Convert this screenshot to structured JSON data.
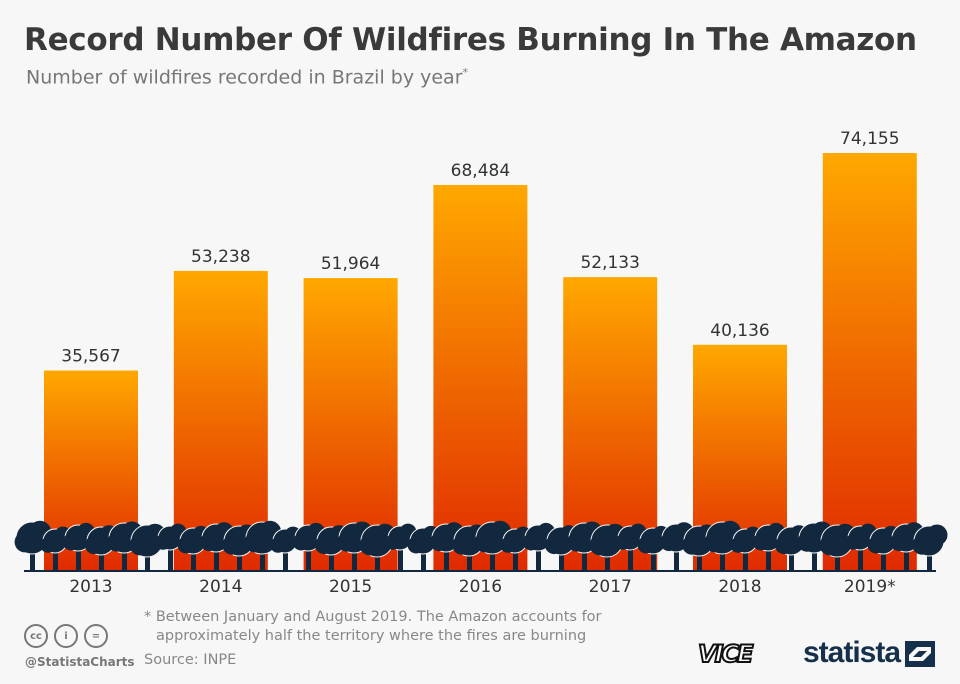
{
  "header": {
    "title": "Record Number Of Wildfires Burning In The Amazon",
    "subtitle": "Number of wildfires recorded in Brazil by year",
    "subtitle_mark": "*"
  },
  "chart_data": {
    "type": "bar",
    "title": "Record Number Of Wildfires Burning In The Amazon",
    "subtitle": "Number of wildfires recorded in Brazil by year*",
    "categories": [
      "2013",
      "2014",
      "2015",
      "2016",
      "2017",
      "2018",
      "2019*"
    ],
    "values": [
      35567,
      53238,
      51964,
      68484,
      52133,
      40136,
      74155
    ],
    "value_labels": [
      "35,567",
      "53,238",
      "51,964",
      "68,484",
      "52,133",
      "40,136",
      "74,155"
    ],
    "xlabel": "",
    "ylabel": "",
    "ylim": [
      0,
      74155
    ],
    "grid": false,
    "colors": {
      "bar_top": "#ffa800",
      "bar_bottom": "#e02a00",
      "trees": "#12283e"
    }
  },
  "footer": {
    "note_line1": "* Between January and August 2019. The Amazon accounts for",
    "note_line2": "approximately half the territory where the fires are burning",
    "source": "Source: INPE",
    "handle": "@StatistaCharts",
    "cc_icons": [
      "cc",
      "by",
      "nd"
    ],
    "cc_labels": [
      "cc",
      "i",
      "="
    ],
    "vice": "VICE",
    "statista": "statista"
  }
}
